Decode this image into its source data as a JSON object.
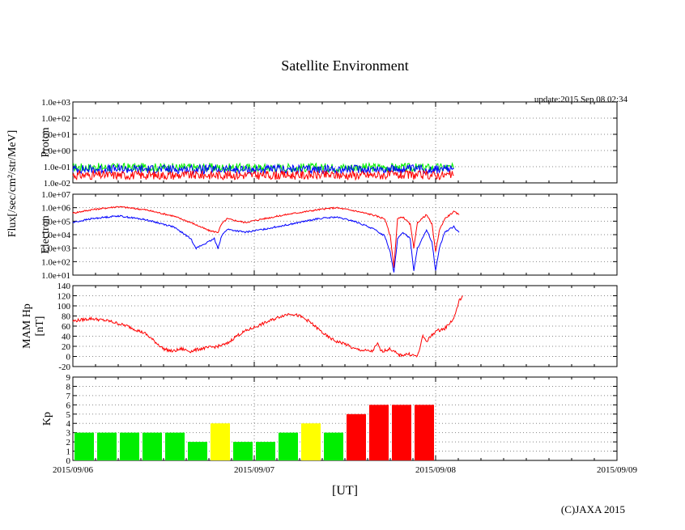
{
  "title": "Satellite Environment",
  "update_text": "update:2015 Sep 08 02:34",
  "copyright": "(C)JAXA 2015",
  "xlabel": "[UT]",
  "x_ticks": [
    "2015/09/06",
    "2015/09/07",
    "2015/09/08",
    "2015/09/09"
  ],
  "shared_ylabel": "Flux[/sec/cm²/str/MeV]",
  "colors": {
    "red": "#ff0000",
    "blue": "#0000ff",
    "green": "#00ee00",
    "yellow": "#ffff00",
    "grid": "#888888"
  },
  "chart_data": [
    {
      "name": "Proton",
      "type": "line",
      "ylabel": "Proton",
      "yscale": "log",
      "ylim": [
        0.01,
        1000
      ],
      "yticks": [
        "1.0e-02",
        "1.0e-01",
        "1.0e+00",
        "1.0e+01",
        "1.0e+02",
        "1.0e+03"
      ],
      "x_range_days": [
        0,
        3
      ],
      "data_end_day": 2.1,
      "series": [
        {
          "color": "green",
          "values_day": [
            [
              0,
              0.09
            ],
            [
              0.5,
              0.09
            ],
            [
              1.0,
              0.085
            ],
            [
              1.5,
              0.09
            ],
            [
              2.1,
              0.085
            ]
          ]
        },
        {
          "color": "blue",
          "values_day": [
            [
              0,
              0.07
            ],
            [
              0.5,
              0.07
            ],
            [
              1.0,
              0.065
            ],
            [
              1.5,
              0.07
            ],
            [
              2.1,
              0.07
            ]
          ]
        },
        {
          "color": "red",
          "values_day": [
            [
              0,
              0.03
            ],
            [
              0.5,
              0.03
            ],
            [
              1.0,
              0.03
            ],
            [
              1.5,
              0.03
            ],
            [
              2.1,
              0.03
            ]
          ]
        }
      ]
    },
    {
      "name": "Electron",
      "type": "line",
      "ylabel": "Electron",
      "yscale": "log",
      "ylim": [
        10,
        10000000
      ],
      "yticks": [
        "1.0e+01",
        "1.0e+02",
        "1.0e+03",
        "1.0e+04",
        "1.0e+05",
        "1.0e+06",
        "1.0e+07"
      ],
      "series": [
        {
          "color": "red",
          "values_day": [
            [
              0,
              400000
            ],
            [
              0.1,
              700000
            ],
            [
              0.25,
              1200000
            ],
            [
              0.4,
              700000
            ],
            [
              0.55,
              250000
            ],
            [
              0.65,
              80000
            ],
            [
              0.75,
              20000
            ],
            [
              0.8,
              15000
            ],
            [
              0.82,
              60000
            ],
            [
              0.85,
              150000
            ],
            [
              0.95,
              80000
            ],
            [
              1.05,
              150000
            ],
            [
              1.2,
              350000
            ],
            [
              1.35,
              700000
            ],
            [
              1.45,
              1000000
            ],
            [
              1.55,
              600000
            ],
            [
              1.65,
              300000
            ],
            [
              1.72,
              150000
            ],
            [
              1.75,
              8000
            ],
            [
              1.77,
              40
            ],
            [
              1.79,
              150000
            ],
            [
              1.82,
              200000
            ],
            [
              1.86,
              60000
            ],
            [
              1.88,
              1000
            ],
            [
              1.9,
              80000
            ],
            [
              1.95,
              300000
            ],
            [
              1.98,
              60000
            ],
            [
              2.0,
              500
            ],
            [
              2.02,
              20000
            ],
            [
              2.05,
              150000
            ],
            [
              2.1,
              500000
            ],
            [
              2.13,
              300000
            ]
          ]
        },
        {
          "color": "blue",
          "values_day": [
            [
              0,
              80000
            ],
            [
              0.1,
              150000
            ],
            [
              0.25,
              250000
            ],
            [
              0.4,
              130000
            ],
            [
              0.55,
              40000
            ],
            [
              0.6,
              15000
            ],
            [
              0.65,
              5000
            ],
            [
              0.68,
              1000
            ],
            [
              0.75,
              3000
            ],
            [
              0.78,
              5000
            ],
            [
              0.8,
              1000
            ],
            [
              0.82,
              8000
            ],
            [
              0.85,
              25000
            ],
            [
              0.95,
              15000
            ],
            [
              1.05,
              25000
            ],
            [
              1.2,
              60000
            ],
            [
              1.35,
              150000
            ],
            [
              1.45,
              200000
            ],
            [
              1.55,
              100000
            ],
            [
              1.65,
              30000
            ],
            [
              1.72,
              8000
            ],
            [
              1.75,
              500
            ],
            [
              1.77,
              15
            ],
            [
              1.79,
              5000
            ],
            [
              1.82,
              15000
            ],
            [
              1.86,
              5000
            ],
            [
              1.88,
              20
            ],
            [
              1.9,
              1000
            ],
            [
              1.95,
              20000
            ],
            [
              1.98,
              3000
            ],
            [
              2.0,
              20
            ],
            [
              2.02,
              1000
            ],
            [
              2.05,
              15000
            ],
            [
              2.1,
              40000
            ],
            [
              2.13,
              15000
            ]
          ]
        }
      ]
    },
    {
      "name": "MAM Hp",
      "type": "line",
      "ylabel_lines": [
        "MAM Hp",
        "[nT]"
      ],
      "ylim": [
        -20,
        140
      ],
      "yticks": [
        "-20",
        "0",
        "20",
        "40",
        "60",
        "80",
        "100",
        "120",
        "140"
      ],
      "series": [
        {
          "color": "red",
          "values_day": [
            [
              0,
              70
            ],
            [
              0.1,
              75
            ],
            [
              0.2,
              70
            ],
            [
              0.3,
              60
            ],
            [
              0.4,
              45
            ],
            [
              0.45,
              30
            ],
            [
              0.5,
              15
            ],
            [
              0.55,
              10
            ],
            [
              0.6,
              15
            ],
            [
              0.65,
              10
            ],
            [
              0.7,
              15
            ],
            [
              0.8,
              20
            ],
            [
              0.85,
              25
            ],
            [
              0.9,
              40
            ],
            [
              0.95,
              50
            ],
            [
              1.05,
              65
            ],
            [
              1.15,
              80
            ],
            [
              1.2,
              85
            ],
            [
              1.25,
              80
            ],
            [
              1.3,
              70
            ],
            [
              1.35,
              55
            ],
            [
              1.4,
              40
            ],
            [
              1.45,
              30
            ],
            [
              1.5,
              25
            ],
            [
              1.55,
              15
            ],
            [
              1.6,
              12
            ],
            [
              1.65,
              10
            ],
            [
              1.68,
              25
            ],
            [
              1.7,
              10
            ],
            [
              1.75,
              15
            ],
            [
              1.8,
              2
            ],
            [
              1.85,
              5
            ],
            [
              1.9,
              0
            ],
            [
              1.93,
              40
            ],
            [
              1.95,
              30
            ],
            [
              2.0,
              50
            ],
            [
              2.05,
              55
            ],
            [
              2.1,
              75
            ],
            [
              2.13,
              110
            ],
            [
              2.15,
              120
            ]
          ]
        }
      ]
    },
    {
      "name": "Kp",
      "type": "bar",
      "ylabel": "Kp",
      "ylim": [
        0,
        9
      ],
      "yticks": [
        "0",
        "1",
        "2",
        "3",
        "4",
        "5",
        "6",
        "7",
        "8",
        "9"
      ],
      "bar_width_days": 0.125,
      "values": [
        3,
        3,
        3,
        3,
        3,
        2,
        4,
        2,
        2,
        3,
        4,
        3,
        5,
        6,
        6,
        6
      ],
      "bar_colors": [
        "green",
        "green",
        "green",
        "green",
        "green",
        "green",
        "yellow",
        "green",
        "green",
        "green",
        "yellow",
        "green",
        "red",
        "red",
        "red",
        "red"
      ]
    }
  ]
}
